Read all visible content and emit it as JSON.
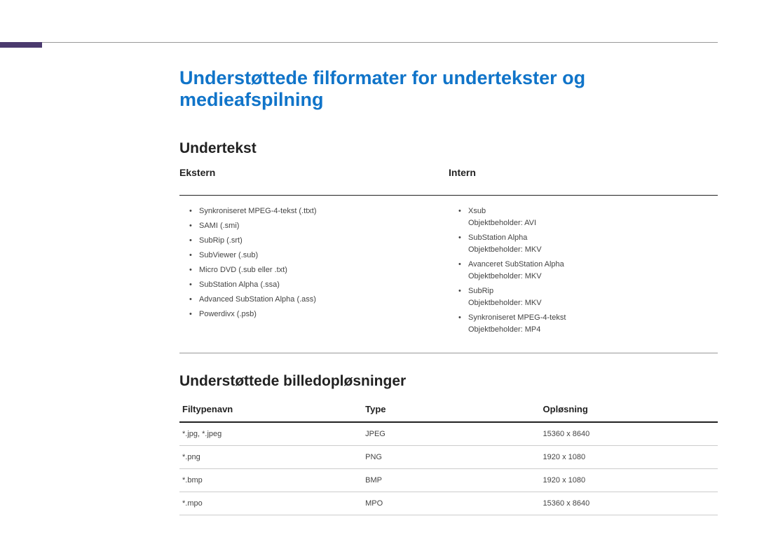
{
  "page_title": "Understøttede filformater for undertekster og medieafspilning",
  "section_subtitle": "Undertekst",
  "ekstern": {
    "heading": "Ekstern",
    "items": [
      "Synkroniseret MPEG-4-tekst (.ttxt)",
      "SAMI (.smi)",
      "SubRip (.srt)",
      "SubViewer (.sub)",
      "Micro DVD (.sub eller .txt)",
      "SubStation Alpha (.ssa)",
      "Advanced SubStation Alpha (.ass)",
      "Powerdivx (.psb)"
    ]
  },
  "intern": {
    "heading": "Intern",
    "items": [
      {
        "main": "Xsub",
        "sub": "Objektbeholder: AVI"
      },
      {
        "main": "SubStation Alpha",
        "sub": "Objektbeholder: MKV"
      },
      {
        "main": "Avanceret SubStation Alpha",
        "sub": "Objektbeholder: MKV"
      },
      {
        "main": "SubRip",
        "sub": "Objektbeholder: MKV"
      },
      {
        "main": "Synkroniseret MPEG-4-tekst",
        "sub": "Objektbeholder: MP4"
      }
    ]
  },
  "resolutions": {
    "heading": "Understøttede billedopløsninger",
    "columns": {
      "file": "Filtypenavn",
      "type": "Type",
      "res": "Opløsning"
    },
    "rows": [
      {
        "file": "*.jpg, *.jpeg",
        "type": "JPEG",
        "res": "15360 x 8640"
      },
      {
        "file": "*.png",
        "type": "PNG",
        "res": "1920 x 1080"
      },
      {
        "file": "*.bmp",
        "type": "BMP",
        "res": "1920 x 1080"
      },
      {
        "file": "*.mpo",
        "type": "MPO",
        "res": "15360 x 8640"
      }
    ]
  },
  "colors": {
    "title": "#1074c9",
    "purple_bar": "#4b3a6e",
    "heading": "#222222",
    "body": "#444444",
    "top_div": "#999999",
    "row_div": "#cccccc",
    "bg": "#ffffff"
  }
}
